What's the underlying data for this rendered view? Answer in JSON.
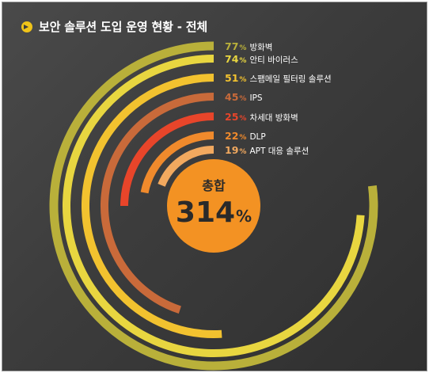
{
  "title": "보안 솔루션 도입 운영 현황 - 전체",
  "colors": {
    "background": "#3d3d3d",
    "center_circle": "#f39223",
    "center_text": "#2a2a2a"
  },
  "chart_data": {
    "type": "radial-bar",
    "title": "보안 솔루션 도입 운영 현황 - 전체",
    "unit": "%",
    "series": [
      {
        "name": "방화벽",
        "value": 77,
        "color": "#b9b03a"
      },
      {
        "name": "안티 바이러스",
        "value": 74,
        "color": "#e8d640"
      },
      {
        "name": "스팸메일 필터링 솔루션",
        "value": 51,
        "color": "#f2c22f"
      },
      {
        "name": "IPS",
        "value": 45,
        "color": "#c96a3a"
      },
      {
        "name": "차세대 방화벽",
        "value": 25,
        "color": "#e8452a"
      },
      {
        "name": "DLP",
        "value": 22,
        "color": "#f08a2c"
      },
      {
        "name": "APT 대응 솔루션",
        "value": 19,
        "color": "#f2a95f"
      }
    ],
    "total": {
      "label": "총합",
      "value": 314,
      "unit": "%"
    }
  }
}
